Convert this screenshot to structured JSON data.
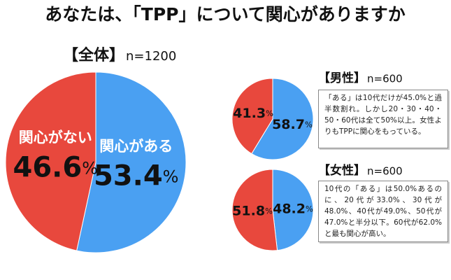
{
  "title": "あなたは、「TPP」について関心がありますか",
  "chart_data": [
    {
      "type": "pie",
      "title": "【全体】",
      "subtitle": "n=1200",
      "categories": [
        "関心がある",
        "関心がない"
      ],
      "values": [
        53.4,
        46.6
      ],
      "value_labels": [
        "53.4%",
        "46.6%"
      ],
      "colors": [
        "#4aa0f2",
        "#e8483d"
      ]
    },
    {
      "type": "pie",
      "title": "【男性】",
      "subtitle": "n=600",
      "categories": [
        null,
        null
      ],
      "values": [
        58.7,
        41.3
      ],
      "value_labels": [
        "58.7%",
        "41.3%"
      ],
      "colors": [
        "#4aa0f2",
        "#e8483d"
      ],
      "annotation": "「ある」は10代だけが45.0%と過半数割れ。しかし20・30・40・50・60代は全て50%以上。女性よりもTPPに関心をもっている。"
    },
    {
      "type": "pie",
      "title": "【女性】",
      "subtitle": "n=600",
      "categories": [
        null,
        null
      ],
      "values": [
        48.2,
        51.8
      ],
      "value_labels": [
        "48.2%",
        "51.8%"
      ],
      "colors": [
        "#4aa0f2",
        "#e8483d"
      ],
      "annotation": "10代の「ある」は50.0%あるのに、20代が33.0%、30代が48.0%、40代が49.0%、50代が47.0%と半分以下。60代が62.0%と最も関心が高い。"
    }
  ]
}
